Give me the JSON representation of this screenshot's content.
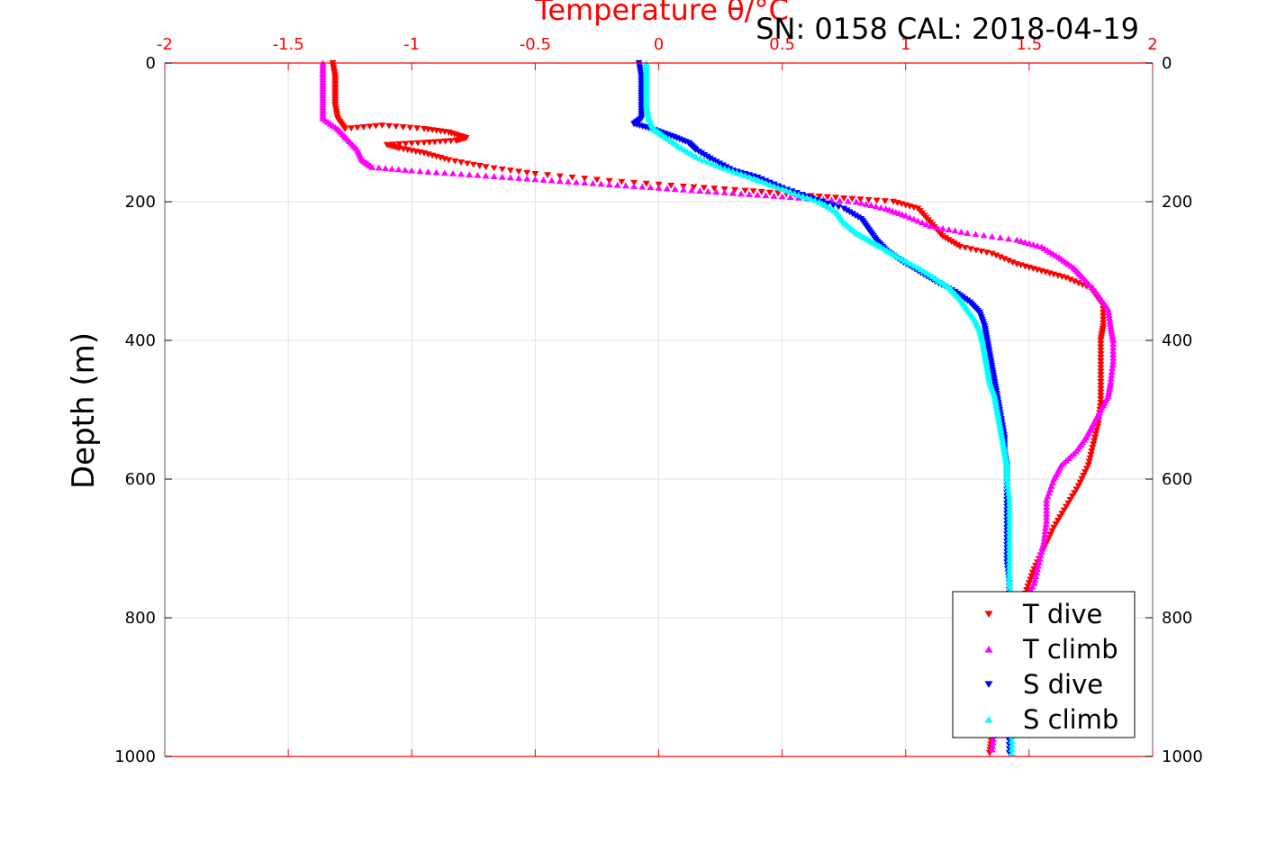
{
  "chart_data": {
    "type": "scatter",
    "title": "Temperature θ/°C",
    "subtitle": "SN: 0158  CAL: 2018-04-19",
    "xlabel": "Temperature θ/°C",
    "ylabel": "Depth (m)",
    "xlim": [
      -2,
      2
    ],
    "ylim": [
      0,
      1000
    ],
    "y_reversed": true,
    "x_ticks": [
      "-2",
      "-1.5",
      "-1",
      "-0.5",
      "0",
      "0.5",
      "1",
      "1.5",
      "2"
    ],
    "x_tick_values": [
      -2,
      -1.5,
      -1,
      -0.5,
      0,
      0.5,
      1,
      1.5,
      2
    ],
    "y_ticks": [
      "0",
      "200",
      "400",
      "600",
      "800",
      "1000"
    ],
    "y_tick_values": [
      0,
      200,
      400,
      600,
      800,
      1000
    ],
    "grid": true,
    "legend_position": "bottom-right",
    "colors": {
      "axis": "#ff0000",
      "T_dive": "#ff0000",
      "T_climb": "#ff00ff",
      "S_dive": "#0000ff",
      "S_climb": "#00ffff",
      "grid": "#e3e3e3",
      "title": "#ff0000"
    },
    "series": [
      {
        "name": "T dive",
        "marker": "triangle-down",
        "color": "#ff0000",
        "points": [
          [
            -1.32,
            0
          ],
          [
            -1.31,
            20
          ],
          [
            -1.31,
            40
          ],
          [
            -1.31,
            60
          ],
          [
            -1.3,
            80
          ],
          [
            -1.27,
            95
          ],
          [
            -1.12,
            90
          ],
          [
            -0.95,
            95
          ],
          [
            -0.85,
            100
          ],
          [
            -0.78,
            108
          ],
          [
            -0.82,
            112
          ],
          [
            -0.95,
            115
          ],
          [
            -1.1,
            118
          ],
          [
            -1.05,
            123
          ],
          [
            -0.95,
            130
          ],
          [
            -0.85,
            140
          ],
          [
            -0.7,
            150
          ],
          [
            -0.5,
            160
          ],
          [
            -0.2,
            170
          ],
          [
            0.1,
            178
          ],
          [
            0.35,
            184
          ],
          [
            0.55,
            190
          ],
          [
            0.75,
            195
          ],
          [
            0.95,
            200
          ],
          [
            1.05,
            210
          ],
          [
            1.1,
            230
          ],
          [
            1.15,
            250
          ],
          [
            1.22,
            265
          ],
          [
            1.35,
            275
          ],
          [
            1.45,
            290
          ],
          [
            1.55,
            300
          ],
          [
            1.65,
            310
          ],
          [
            1.75,
            325
          ],
          [
            1.8,
            350
          ],
          [
            1.8,
            380
          ],
          [
            1.79,
            400
          ],
          [
            1.79,
            430
          ],
          [
            1.79,
            460
          ],
          [
            1.79,
            490
          ],
          [
            1.78,
            520
          ],
          [
            1.76,
            550
          ],
          [
            1.74,
            580
          ],
          [
            1.7,
            610
          ],
          [
            1.65,
            640
          ],
          [
            1.6,
            670
          ],
          [
            1.56,
            700
          ],
          [
            1.52,
            730
          ],
          [
            1.49,
            760
          ],
          [
            1.46,
            790
          ],
          [
            1.43,
            820
          ],
          [
            1.4,
            850
          ],
          [
            1.38,
            880
          ],
          [
            1.37,
            910
          ],
          [
            1.36,
            940
          ],
          [
            1.35,
            970
          ],
          [
            1.34,
            995
          ]
        ]
      },
      {
        "name": "T climb",
        "marker": "triangle-up",
        "color": "#ff00ff",
        "points": [
          [
            -1.36,
            0
          ],
          [
            -1.36,
            20
          ],
          [
            -1.36,
            40
          ],
          [
            -1.36,
            60
          ],
          [
            -1.36,
            80
          ],
          [
            -1.3,
            95
          ],
          [
            -1.26,
            110
          ],
          [
            -1.22,
            125
          ],
          [
            -1.2,
            140
          ],
          [
            -1.16,
            150
          ],
          [
            -1.0,
            155
          ],
          [
            -0.8,
            160
          ],
          [
            -0.6,
            165
          ],
          [
            -0.4,
            170
          ],
          [
            -0.2,
            175
          ],
          [
            0.0,
            180
          ],
          [
            0.2,
            185
          ],
          [
            0.4,
            190
          ],
          [
            0.6,
            195
          ],
          [
            0.8,
            200
          ],
          [
            0.92,
            210
          ],
          [
            1.0,
            220
          ],
          [
            1.1,
            235
          ],
          [
            1.25,
            245
          ],
          [
            1.45,
            255
          ],
          [
            1.55,
            265
          ],
          [
            1.62,
            280
          ],
          [
            1.68,
            295
          ],
          [
            1.72,
            310
          ],
          [
            1.77,
            330
          ],
          [
            1.82,
            355
          ],
          [
            1.83,
            380
          ],
          [
            1.84,
            400
          ],
          [
            1.84,
            430
          ],
          [
            1.83,
            460
          ],
          [
            1.82,
            480
          ],
          [
            1.79,
            500
          ],
          [
            1.76,
            520
          ],
          [
            1.73,
            540
          ],
          [
            1.69,
            560
          ],
          [
            1.63,
            580
          ],
          [
            1.6,
            600
          ],
          [
            1.57,
            630
          ],
          [
            1.57,
            660
          ],
          [
            1.56,
            690
          ],
          [
            1.54,
            720
          ],
          [
            1.52,
            750
          ],
          [
            1.48,
            780
          ],
          [
            1.44,
            810
          ],
          [
            1.42,
            840
          ],
          [
            1.4,
            870
          ],
          [
            1.38,
            900
          ],
          [
            1.37,
            930
          ],
          [
            1.36,
            960
          ],
          [
            1.35,
            990
          ]
        ]
      },
      {
        "name": "S dive",
        "marker": "triangle-down",
        "color": "#0000ff",
        "points": [
          [
            -0.08,
            0
          ],
          [
            -0.07,
            20
          ],
          [
            -0.07,
            40
          ],
          [
            -0.07,
            60
          ],
          [
            -0.07,
            80
          ],
          [
            -0.1,
            88
          ],
          [
            -0.03,
            95
          ],
          [
            0.05,
            105
          ],
          [
            0.12,
            115
          ],
          [
            0.15,
            125
          ],
          [
            0.22,
            140
          ],
          [
            0.3,
            155
          ],
          [
            0.4,
            165
          ],
          [
            0.5,
            180
          ],
          [
            0.62,
            195
          ],
          [
            0.75,
            210
          ],
          [
            0.82,
            225
          ],
          [
            0.85,
            240
          ],
          [
            0.88,
            255
          ],
          [
            0.92,
            270
          ],
          [
            0.98,
            285
          ],
          [
            1.05,
            300
          ],
          [
            1.12,
            315
          ],
          [
            1.2,
            330
          ],
          [
            1.26,
            345
          ],
          [
            1.3,
            360
          ],
          [
            1.32,
            380
          ],
          [
            1.33,
            400
          ],
          [
            1.34,
            420
          ],
          [
            1.35,
            440
          ],
          [
            1.36,
            460
          ],
          [
            1.37,
            480
          ],
          [
            1.38,
            500
          ],
          [
            1.39,
            520
          ],
          [
            1.4,
            540
          ],
          [
            1.4,
            560
          ],
          [
            1.41,
            580
          ],
          [
            1.41,
            600
          ],
          [
            1.41,
            630
          ],
          [
            1.41,
            660
          ],
          [
            1.41,
            690
          ],
          [
            1.41,
            720
          ],
          [
            1.42,
            750
          ],
          [
            1.42,
            780
          ],
          [
            1.42,
            810
          ],
          [
            1.42,
            840
          ],
          [
            1.42,
            870
          ],
          [
            1.42,
            900
          ],
          [
            1.42,
            930
          ],
          [
            1.42,
            960
          ],
          [
            1.42,
            995
          ]
        ]
      },
      {
        "name": "S climb",
        "marker": "triangle-up",
        "color": "#00ffff",
        "points": [
          [
            -0.05,
            0
          ],
          [
            -0.05,
            20
          ],
          [
            -0.05,
            40
          ],
          [
            -0.05,
            60
          ],
          [
            -0.04,
            80
          ],
          [
            -0.02,
            95
          ],
          [
            0.02,
            105
          ],
          [
            0.08,
            120
          ],
          [
            0.15,
            135
          ],
          [
            0.25,
            150
          ],
          [
            0.35,
            162
          ],
          [
            0.45,
            175
          ],
          [
            0.55,
            188
          ],
          [
            0.65,
            200
          ],
          [
            0.72,
            215
          ],
          [
            0.75,
            230
          ],
          [
            0.8,
            245
          ],
          [
            0.85,
            255
          ],
          [
            0.9,
            265
          ],
          [
            0.97,
            280
          ],
          [
            1.05,
            295
          ],
          [
            1.12,
            310
          ],
          [
            1.18,
            325
          ],
          [
            1.22,
            340
          ],
          [
            1.25,
            355
          ],
          [
            1.28,
            370
          ],
          [
            1.3,
            385
          ],
          [
            1.31,
            400
          ],
          [
            1.32,
            420
          ],
          [
            1.33,
            440
          ],
          [
            1.34,
            460
          ],
          [
            1.36,
            480
          ],
          [
            1.37,
            500
          ],
          [
            1.38,
            520
          ],
          [
            1.39,
            540
          ],
          [
            1.4,
            560
          ],
          [
            1.41,
            580
          ],
          [
            1.41,
            600
          ],
          [
            1.42,
            630
          ],
          [
            1.42,
            660
          ],
          [
            1.42,
            690
          ],
          [
            1.42,
            720
          ],
          [
            1.42,
            750
          ],
          [
            1.43,
            780
          ],
          [
            1.43,
            810
          ],
          [
            1.43,
            840
          ],
          [
            1.43,
            870
          ],
          [
            1.43,
            900
          ],
          [
            1.43,
            930
          ],
          [
            1.43,
            960
          ],
          [
            1.43,
            995
          ]
        ]
      }
    ]
  }
}
